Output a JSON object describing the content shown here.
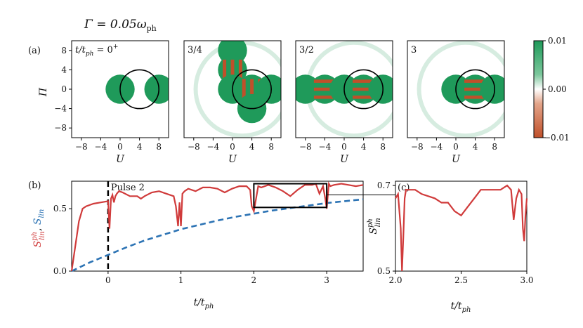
{
  "figure": {
    "title": "Γ = 0.05ω",
    "title_sub": "ph",
    "panel_labels": {
      "a": "(a)",
      "b": "(b)",
      "c": "(c)"
    }
  },
  "colorbar": {
    "ticks": [
      "0.01",
      "0.00",
      "−0.01"
    ],
    "range": [
      -0.01,
      0.01
    ],
    "colors": {
      "positive": "#1f9a5a",
      "zero": "#ffffff",
      "negative": "#c0502a"
    }
  },
  "colors": {
    "s_lin_ph": "#d03b3b",
    "s_lin": "#2c73b4",
    "circle": "#000000"
  },
  "chart_data": [
    {
      "type": "heatmap",
      "panel": "a",
      "subplots": [
        {
          "label": "t/t",
          "label_sub": "ph",
          "label_tail": " = 0",
          "label_sup": "+",
          "time": 0
        },
        {
          "label": "3/4",
          "time": 0.75
        },
        {
          "label": "3/2",
          "time": 1.5
        },
        {
          "label": "3",
          "time": 3
        }
      ],
      "xlabel": "U",
      "ylabel": "Π",
      "xlim": [
        -10,
        10
      ],
      "ylim": [
        -10,
        10
      ],
      "xticks": [
        "−8",
        "−4",
        "0",
        "4",
        "8"
      ],
      "yticks": [
        "8",
        "4",
        "0",
        "−4",
        "−8"
      ],
      "circle": {
        "center": [
          4,
          0
        ],
        "radius": 4
      }
    },
    {
      "type": "line",
      "panel": "b",
      "xlabel": "t/t",
      "xlabel_sub": "ph",
      "ylabel_red": "S",
      "ylabel_red_sup": "ph",
      "ylabel_red_sub": "lin",
      "ylabel_sep": ", ",
      "ylabel_blue": "S",
      "ylabel_blue_sub": "lin",
      "xlim": [
        -0.5,
        3.5
      ],
      "ylim": [
        0,
        0.72
      ],
      "xticks": [
        "0",
        "1",
        "2",
        "3"
      ],
      "yticks": [
        "0.0",
        "0.5"
      ],
      "annotation": "Pulse 2",
      "pulse_time": 0,
      "zoom_box": {
        "x": [
          2,
          3
        ],
        "y": [
          0.51,
          0.7
        ]
      },
      "series": [
        {
          "name": "S_lin^ph",
          "x": [
            -0.5,
            -0.4,
            -0.35,
            -0.3,
            -0.2,
            -0.1,
            0,
            0.02,
            0.04,
            0.06,
            0.08,
            0.1,
            0.12,
            0.15,
            0.2,
            0.3,
            0.4,
            0.45,
            0.5,
            0.6,
            0.7,
            0.8,
            0.9,
            0.93,
            0.96,
            0.98,
            1.0,
            1.02,
            1.05,
            1.1,
            1.2,
            1.3,
            1.4,
            1.5,
            1.6,
            1.7,
            1.8,
            1.9,
            1.95,
            1.97,
            2.0,
            2.03,
            2.06,
            2.1,
            2.2,
            2.3,
            2.4,
            2.5,
            2.6,
            2.7,
            2.8,
            2.85,
            2.9,
            2.95,
            2.98,
            3.0,
            3.03,
            3.05,
            3.1,
            3.2,
            3.3,
            3.4,
            3.5
          ],
          "values": [
            0.0,
            0.4,
            0.5,
            0.52,
            0.54,
            0.55,
            0.56,
            0.34,
            0.58,
            0.61,
            0.55,
            0.6,
            0.62,
            0.64,
            0.63,
            0.6,
            0.6,
            0.58,
            0.6,
            0.63,
            0.64,
            0.62,
            0.6,
            0.52,
            0.36,
            0.55,
            0.36,
            0.62,
            0.64,
            0.66,
            0.64,
            0.67,
            0.67,
            0.66,
            0.63,
            0.66,
            0.68,
            0.68,
            0.65,
            0.52,
            0.48,
            0.58,
            0.68,
            0.67,
            0.69,
            0.67,
            0.64,
            0.6,
            0.65,
            0.69,
            0.69,
            0.7,
            0.62,
            0.68,
            0.58,
            0.5,
            0.7,
            0.68,
            0.69,
            0.7,
            0.69,
            0.68,
            0.69
          ]
        },
        {
          "name": "S_lin",
          "x": [
            -0.5,
            -0.25,
            0,
            0.25,
            0.5,
            0.75,
            1,
            1.25,
            1.5,
            1.75,
            2,
            2.25,
            2.5,
            2.75,
            3,
            3.25,
            3.5
          ],
          "values": [
            0.0,
            0.07,
            0.13,
            0.19,
            0.245,
            0.29,
            0.335,
            0.37,
            0.405,
            0.435,
            0.46,
            0.485,
            0.505,
            0.525,
            0.545,
            0.56,
            0.575
          ]
        }
      ]
    },
    {
      "type": "line",
      "panel": "c",
      "xlabel": "t/t",
      "xlabel_sub": "ph",
      "ylabel": "S",
      "ylabel_sup": "ph",
      "ylabel_sub": "lin",
      "xlim": [
        2,
        3
      ],
      "ylim": [
        0.5,
        0.71
      ],
      "xticks": [
        "2.0",
        "2.5",
        "3.0"
      ],
      "yticks": [
        "0.7",
        "0.5"
      ],
      "series": [
        {
          "name": "S_lin^ph",
          "x": [
            2.0,
            2.02,
            2.04,
            2.05,
            2.06,
            2.07,
            2.08,
            2.1,
            2.15,
            2.2,
            2.3,
            2.35,
            2.4,
            2.45,
            2.5,
            2.55,
            2.6,
            2.65,
            2.7,
            2.8,
            2.85,
            2.88,
            2.9,
            2.92,
            2.94,
            2.96,
            2.97,
            2.98,
            2.99,
            3.0
          ],
          "values": [
            0.67,
            0.68,
            0.6,
            0.5,
            0.58,
            0.67,
            0.69,
            0.69,
            0.69,
            0.68,
            0.67,
            0.66,
            0.66,
            0.64,
            0.63,
            0.65,
            0.67,
            0.69,
            0.69,
            0.69,
            0.7,
            0.69,
            0.62,
            0.67,
            0.69,
            0.68,
            0.6,
            0.57,
            0.63,
            0.67
          ]
        }
      ]
    }
  ]
}
